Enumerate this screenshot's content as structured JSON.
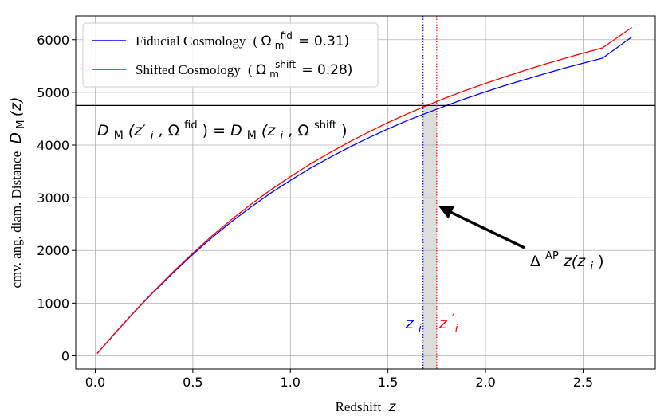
{
  "chart_data": {
    "type": "line",
    "xlabel": "Redshift",
    "xlabel_var": "z",
    "ylabel": "cmv. ang. diam. Distance",
    "ylabel_var": "D",
    "ylabel_sub": "M",
    "ylabel_paren": "(z)",
    "xlim": [
      -0.1,
      2.87
    ],
    "ylim": [
      -250,
      6450
    ],
    "xticks": [
      0.0,
      0.5,
      1.0,
      1.5,
      2.0,
      2.5
    ],
    "xtick_labels": [
      "0.0",
      "0.5",
      "1.0",
      "1.5",
      "2.0",
      "2.5"
    ],
    "yticks": [
      0,
      1000,
      2000,
      3000,
      4000,
      5000,
      6000
    ],
    "ytick_labels": [
      "0",
      "1000",
      "2000",
      "3000",
      "4000",
      "5000",
      "6000"
    ],
    "grid": true,
    "legend_position": "top-left",
    "series": [
      {
        "name": "Fiducial Cosmology",
        "legend_param_symbol": "Ω",
        "legend_param_sub": "m",
        "legend_param_sup": "fid",
        "legend_param_value": "= 0.31)",
        "color": "#0000ff",
        "x": [
          0.01,
          0.1,
          0.2,
          0.3,
          0.4,
          0.5,
          0.6,
          0.7,
          0.8,
          0.9,
          1.0,
          1.1,
          1.2,
          1.3,
          1.4,
          1.5,
          1.6,
          1.7,
          1.8,
          1.9,
          2.0,
          2.1,
          2.2,
          2.3,
          2.4,
          2.5,
          2.6,
          2.75
        ],
        "y": [
          43,
          425,
          830,
          1215,
          1580,
          1925,
          2250,
          2550,
          2830,
          3090,
          3330,
          3555,
          3760,
          3955,
          4135,
          4305,
          4465,
          4610,
          4750,
          4885,
          5010,
          5130,
          5240,
          5350,
          5455,
          5555,
          5650,
          6050
        ]
      },
      {
        "name": "Shifted Cosmology",
        "legend_param_symbol": "Ω",
        "legend_param_sub": "m",
        "legend_param_sup": "shift",
        "legend_param_value": "= 0.28)",
        "color": "#ff0000",
        "x": [
          0.01,
          0.1,
          0.2,
          0.3,
          0.4,
          0.5,
          0.6,
          0.7,
          0.8,
          0.9,
          1.0,
          1.1,
          1.2,
          1.3,
          1.4,
          1.5,
          1.6,
          1.7,
          1.8,
          1.9,
          2.0,
          2.1,
          2.2,
          2.3,
          2.4,
          2.5,
          2.6,
          2.75
        ],
        "y": [
          43,
          427,
          836,
          1226,
          1596,
          1947,
          2280,
          2590,
          2880,
          3150,
          3400,
          3635,
          3850,
          4055,
          4245,
          4425,
          4595,
          4750,
          4900,
          5040,
          5170,
          5295,
          5415,
          5530,
          5640,
          5745,
          5845,
          6230
        ]
      }
    ],
    "hline": {
      "y": 4750,
      "color": "#000000"
    },
    "vlines": [
      {
        "x": 1.68,
        "color": "#0000ff",
        "label": "z",
        "label_sub": "i"
      },
      {
        "x": 1.75,
        "color": "#ff0000",
        "label": "z",
        "label_sub": "i",
        "label_prime": "′"
      }
    ],
    "shaded_band": {
      "x0": 1.68,
      "x1": 1.75,
      "color": "#dcdcdc"
    },
    "equation": {
      "lhs": "D",
      "lhs_sub": "M",
      "lhs_args": "(z′",
      "lhs_args_sub": "i",
      "lhs_omega": ", Ω",
      "lhs_omega_sup": "fid",
      "lhs_close": ") = ",
      "rhs": "D",
      "rhs_sub": "M",
      "rhs_args": "(z",
      "rhs_args_sub": "i",
      "rhs_omega": ", Ω",
      "rhs_omega_sup": "shift",
      "rhs_close": ")"
    },
    "annotation": {
      "text": "Δ",
      "sup": "AP",
      "text2": "z(z",
      "sub": "i",
      "text3": ")",
      "arrow_from": [
        2.2,
        2050
      ],
      "arrow_to": [
        1.78,
        2800
      ]
    }
  }
}
